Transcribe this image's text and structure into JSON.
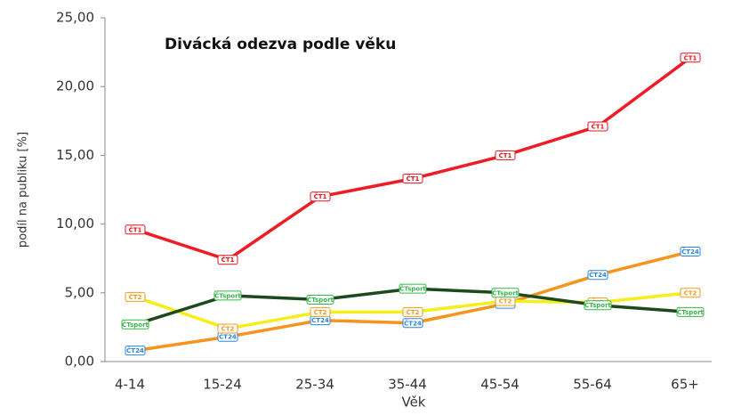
{
  "chart_data": {
    "type": "line",
    "title": "Divácká odezva podle věku",
    "x_label": "Věk",
    "y_label": "podíl na publiku [%]",
    "categories": [
      "4-14",
      "15-24",
      "25-34",
      "35-44",
      "45-54",
      "55-64",
      "65+"
    ],
    "series": [
      {
        "name": "ČT1",
        "color": "#ee1c25",
        "marker_color": "#e0141c",
        "values": [
          9.6,
          7.4,
          12.0,
          13.3,
          15.0,
          17.1,
          22.1
        ]
      },
      {
        "name": "ČT24",
        "color": "#f7941d",
        "marker_color": "#2a86e0",
        "values": [
          0.8,
          1.8,
          3.0,
          2.8,
          4.2,
          6.3,
          8.0
        ]
      },
      {
        "name": "ČT2",
        "color": "#f5ee1a",
        "marker_color": "#f39a1e",
        "values": [
          4.7,
          2.4,
          3.6,
          3.6,
          4.4,
          4.3,
          5.0
        ]
      },
      {
        "name": "ČTsport",
        "color": "#1d4a1d",
        "marker_color": "#3ab54a",
        "values": [
          2.7,
          4.8,
          4.5,
          5.3,
          5.0,
          4.1,
          3.6
        ]
      }
    ],
    "ylim": [
      0,
      25
    ],
    "yticks": [
      {
        "value": 0,
        "label": "0,00"
      },
      {
        "value": 5,
        "label": "5,00"
      },
      {
        "value": 10,
        "label": "10,00"
      },
      {
        "value": 15,
        "label": "15,00"
      },
      {
        "value": 20,
        "label": "20,00"
      },
      {
        "value": 25,
        "label": "25,00"
      }
    ],
    "grid": false
  }
}
